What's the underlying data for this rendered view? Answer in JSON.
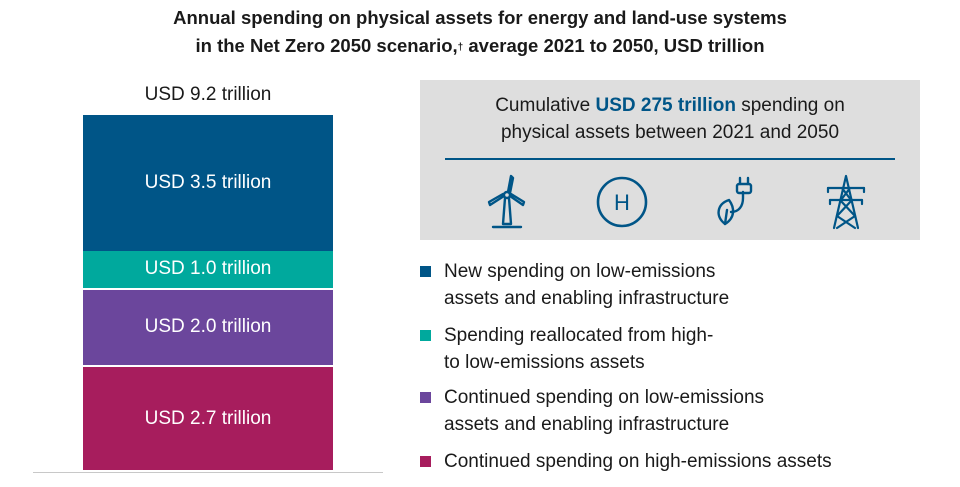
{
  "title": {
    "line1": "Annual spending on physical assets for energy and land-use systems",
    "line2_pre": "in the Net Zero 2050 scenario,",
    "line2_mark": "†",
    "line2_post": " average 2021 to 2050, USD trillion"
  },
  "chart_data": {
    "type": "bar",
    "stacked": true,
    "total": 9.2,
    "total_label": "USD 9.2 trillion",
    "unit": "USD trillion",
    "series": [
      {
        "name": "Continued spending on high-emissions assets",
        "value": 2.7,
        "label": "USD 2.7 trillion",
        "color": "#a71d5d"
      },
      {
        "name": "Continued spending on low-emissions assets and enabling infrastructure",
        "value": 2.0,
        "label": "USD 2.0 trillion",
        "color": "#6b469c"
      },
      {
        "name": "Spending reallocated from high- to low-emissions assets",
        "value": 1.0,
        "label": "USD 1.0 trillion",
        "color": "#00a99d"
      },
      {
        "name": "New spending on low-emissions assets and enabling infrastructure",
        "value": 3.5,
        "label": "USD 3.5 trillion",
        "color": "#005587"
      }
    ]
  },
  "panel": {
    "text_pre": "Cumulative ",
    "text_highlight": "USD 275 trillion",
    "text_post_line1": " spending on",
    "text_line2": "physical assets between 2021 and 2050",
    "icons": [
      "wind-turbine-icon",
      "hydrogen-icon",
      "bio-plug-icon",
      "power-pylon-icon"
    ],
    "hydrogen_letter": "H",
    "accent_color": "#005587"
  },
  "legend": [
    {
      "text": "New spending on low-emissions\nassets and enabling infrastructure",
      "color": "#005587"
    },
    {
      "text": "Spending reallocated from high-\nto low-emissions assets",
      "color": "#00a99d"
    },
    {
      "text": "Continued spending on low-emissions\nassets and enabling infrastructure",
      "color": "#6b469c"
    },
    {
      "text": "Continued spending on high-emissions assets",
      "color": "#a71d5d"
    }
  ]
}
